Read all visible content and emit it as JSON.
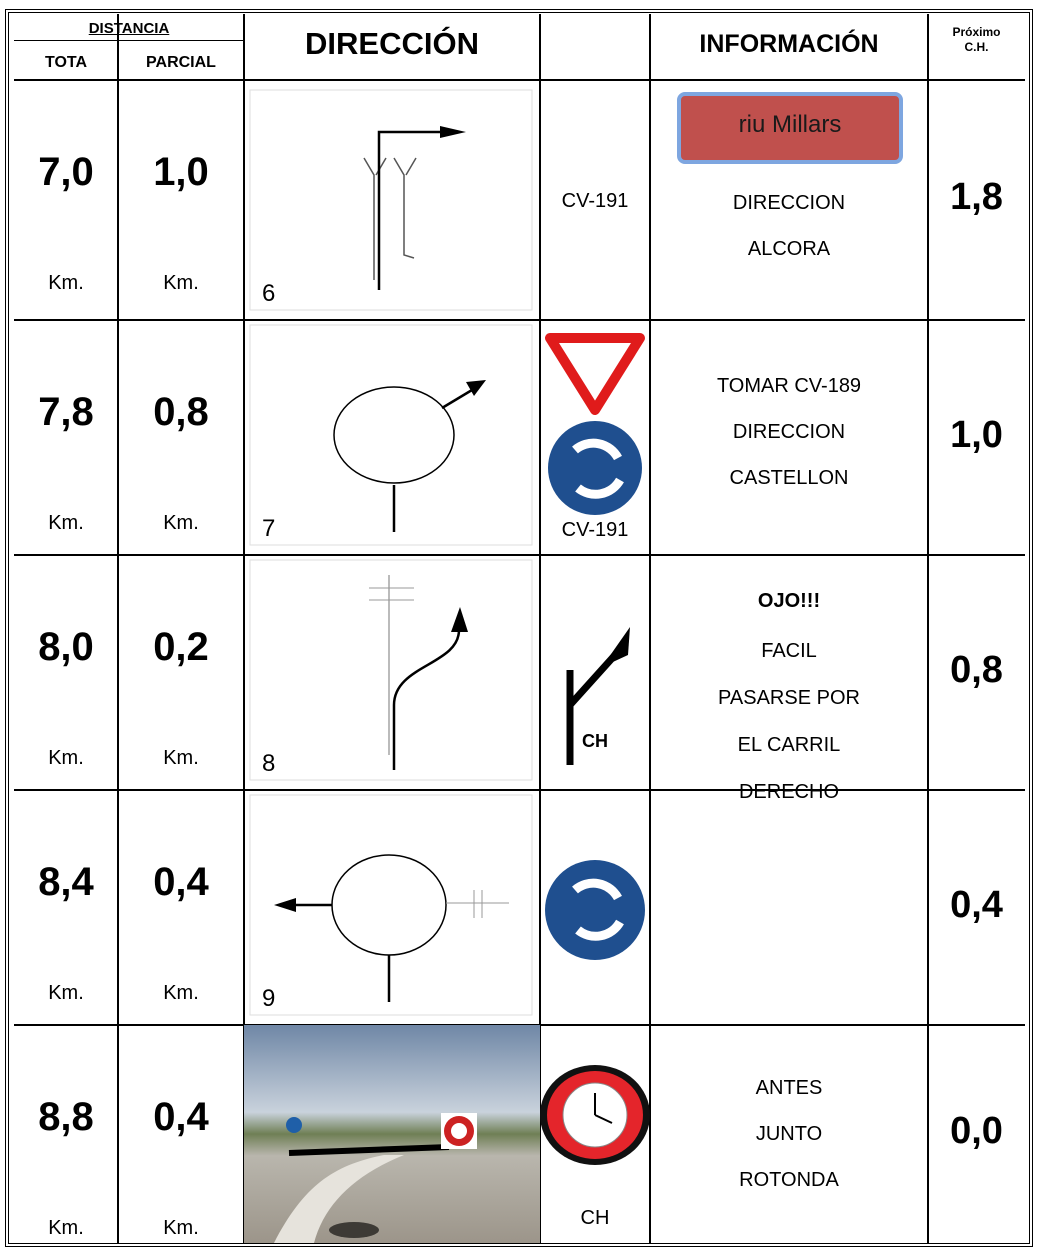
{
  "header": {
    "distancia": "DISTANCIA",
    "total": "TOTA",
    "partial": "PARCIAL",
    "direction": "DIRECCIÓN",
    "information": "INFORMACIÓN",
    "next_ch": [
      "Próximo",
      "C.H."
    ]
  },
  "rows": [
    {
      "total": "7,0",
      "total_unit": "Km.",
      "partial": "1,0",
      "partial_unit": "Km.",
      "diagram": "6",
      "sign_label": "CV-191",
      "info": {
        "badge": "riu Millars",
        "lines": [
          "DIRECCION",
          "ALCORA"
        ]
      },
      "next": "1,8"
    },
    {
      "total": "7,8",
      "total_unit": "Km.",
      "partial": "0,8",
      "partial_unit": "Km.",
      "diagram": "7",
      "sign_label": "CV-191",
      "info": {
        "lines": [
          "TOMAR CV-189",
          "DIRECCION",
          "CASTELLON"
        ]
      },
      "next": "1,0"
    },
    {
      "total": "8,0",
      "total_unit": "Km.",
      "partial": "0,2",
      "partial_unit": "Km.",
      "diagram": "8",
      "sign_label": "CH",
      "info": {
        "heading": "OJO!!!",
        "lines": [
          "FACIL",
          "PASARSE POR",
          "EL CARRIL",
          "DERECHO"
        ]
      },
      "next": "0,8"
    },
    {
      "total": "8,4",
      "total_unit": "Km.",
      "partial": "0,4",
      "partial_unit": "Km.",
      "diagram": "9",
      "info": {
        "lines": []
      },
      "next": "0,4"
    },
    {
      "total": "8,8",
      "total_unit": "Km.",
      "partial": "0,4",
      "partial_unit": "Km.",
      "sign_label": "CH",
      "info": {
        "lines": [
          "ANTES",
          "JUNTO",
          "ROTONDA"
        ]
      },
      "next": "0,0"
    }
  ]
}
